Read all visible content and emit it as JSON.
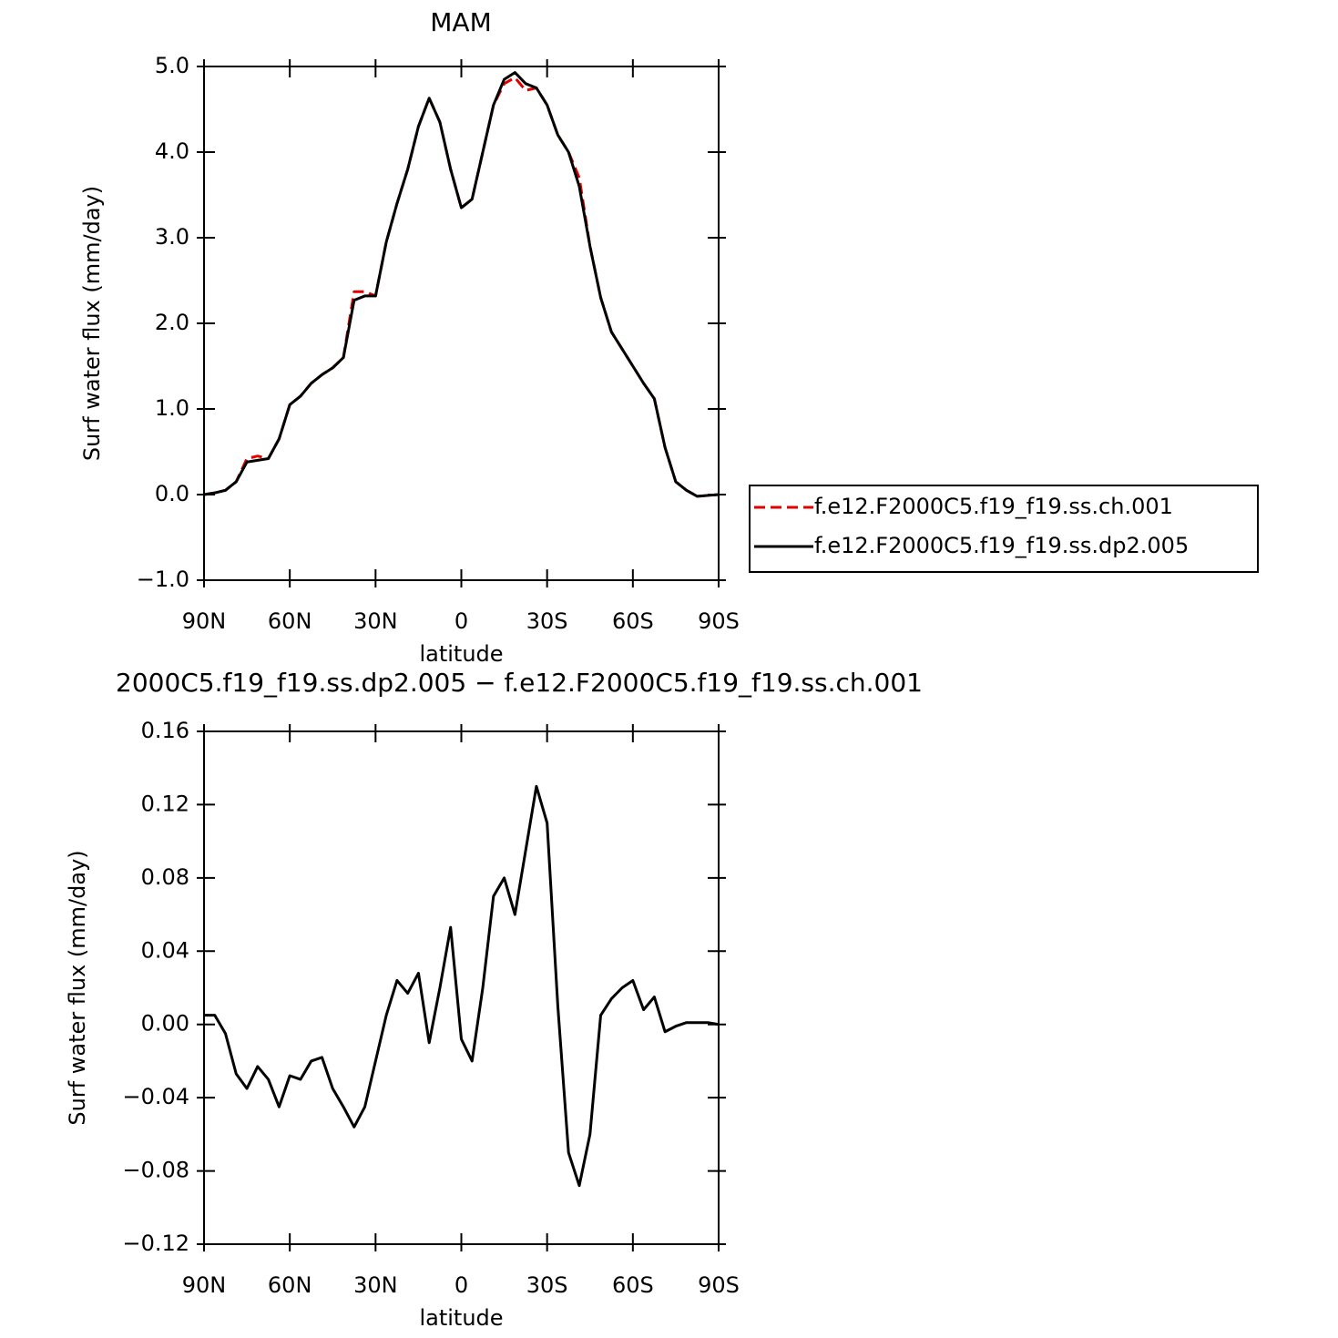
{
  "chart_data": [
    {
      "type": "line",
      "title": "MAM",
      "xlabel": "latitude",
      "ylabel": "Surf water flux (mm/day)",
      "x": [
        90,
        86.25,
        82.5,
        78.75,
        75,
        71.25,
        67.5,
        63.75,
        60,
        56.25,
        52.5,
        48.75,
        45,
        41.25,
        37.5,
        33.75,
        30,
        26.25,
        22.5,
        18.75,
        15,
        11.25,
        7.5,
        3.75,
        0,
        -3.75,
        -7.5,
        -11.25,
        -15,
        -18.75,
        -22.5,
        -26.25,
        -30,
        -33.75,
        -37.5,
        -41.25,
        -45,
        -48.75,
        -52.5,
        -56.25,
        -60,
        -63.75,
        -67.5,
        -71.25,
        -75,
        -78.75,
        -82.5,
        -86.25,
        -90
      ],
      "xlim": [
        90,
        -90
      ],
      "xticks": [
        {
          "value": 90,
          "label": "90N"
        },
        {
          "value": 60,
          "label": "60N"
        },
        {
          "value": 30,
          "label": "30N"
        },
        0,
        {
          "value": -30,
          "label": "30S"
        },
        {
          "value": -60,
          "label": "60S"
        },
        {
          "value": -90,
          "label": "90S"
        }
      ],
      "ylim": [
        -1,
        5
      ],
      "yticks": [
        {
          "value": -1,
          "label": "−1.0"
        },
        {
          "value": 0,
          "label": "0.0"
        },
        {
          "value": 1,
          "label": "1.0"
        },
        {
          "value": 2,
          "label": "2.0"
        },
        {
          "value": 3,
          "label": "3.0"
        },
        {
          "value": 4,
          "label": "4.0"
        },
        {
          "value": 5,
          "label": "5.0"
        }
      ],
      "legend": "right",
      "series": [
        {
          "name": "f.e12.F2000C5.f19_f19.ss.ch.001",
          "color": "#e00000",
          "linestyle": "dashed",
          "values": [
            0,
            0.02,
            0.05,
            0.15,
            0.42,
            0.45,
            0.42,
            0.65,
            1.05,
            1.15,
            1.3,
            1.4,
            1.48,
            1.6,
            2.37,
            2.37,
            2.32,
            2.95,
            3.4,
            3.8,
            4.3,
            4.63,
            4.35,
            3.8,
            3.35,
            3.45,
            4,
            4.55,
            4.8,
            4.87,
            4.72,
            4.75,
            4.55,
            4.2,
            4,
            3.7,
            2.9,
            2.3,
            1.9,
            1.7,
            1.5,
            1.3,
            1.12,
            0.55,
            0.15,
            0.05,
            -0.02,
            -0.01,
            0
          ]
        },
        {
          "name": "f.e12.F2000C5.f19_f19.ss.dp2.005",
          "color": "#000000",
          "linestyle": "solid",
          "values": [
            0,
            0.02,
            0.05,
            0.15,
            0.38,
            0.4,
            0.42,
            0.65,
            1.05,
            1.15,
            1.3,
            1.4,
            1.48,
            1.6,
            2.27,
            2.32,
            2.32,
            2.95,
            3.4,
            3.8,
            4.3,
            4.63,
            4.35,
            3.8,
            3.35,
            3.45,
            4,
            4.55,
            4.85,
            4.93,
            4.8,
            4.75,
            4.55,
            4.2,
            4,
            3.6,
            2.9,
            2.3,
            1.9,
            1.7,
            1.5,
            1.3,
            1.12,
            0.55,
            0.15,
            0.05,
            -0.02,
            -0.01,
            0
          ]
        }
      ]
    },
    {
      "type": "line",
      "title": "2000C5.f19_f19.ss.dp2.005 − f.e12.F2000C5.f19_f19.ss.ch.001",
      "xlabel": "latitude",
      "ylabel": "Surf water flux (mm/day)",
      "x": [
        90,
        86.25,
        82.5,
        78.75,
        75,
        71.25,
        67.5,
        63.75,
        60,
        56.25,
        52.5,
        48.75,
        45,
        41.25,
        37.5,
        33.75,
        30,
        26.25,
        22.5,
        18.75,
        15,
        11.25,
        7.5,
        3.75,
        0,
        -3.75,
        -7.5,
        -11.25,
        -15,
        -18.75,
        -22.5,
        -26.25,
        -30,
        -33.75,
        -37.5,
        -41.25,
        -45,
        -48.75,
        -52.5,
        -56.25,
        -60,
        -63.75,
        -67.5,
        -71.25,
        -75,
        -78.75,
        -82.5,
        -86.25,
        -90
      ],
      "xlim": [
        90,
        -90
      ],
      "xticks": [
        {
          "value": 90,
          "label": "90N"
        },
        {
          "value": 60,
          "label": "60N"
        },
        {
          "value": 30,
          "label": "30N"
        },
        0,
        {
          "value": -30,
          "label": "30S"
        },
        {
          "value": -60,
          "label": "60S"
        },
        {
          "value": -90,
          "label": "90S"
        }
      ],
      "ylim": [
        -0.12,
        0.16
      ],
      "yticks": [
        {
          "value": -0.12,
          "label": "−0.12"
        },
        {
          "value": -0.08,
          "label": "−0.08"
        },
        {
          "value": -0.04,
          "label": "−0.04"
        },
        {
          "value": 0,
          "label": "0.00"
        },
        0.04,
        0.08,
        0.12,
        0.16
      ],
      "series": [
        {
          "color": "#000000",
          "linestyle": "solid",
          "values": [
            0.005,
            0.005,
            -0.005,
            -0.027,
            -0.035,
            -0.023,
            -0.03,
            -0.045,
            -0.028,
            -0.03,
            -0.02,
            -0.018,
            -0.035,
            -0.045,
            -0.056,
            -0.045,
            -0.02,
            0.005,
            0.024,
            0.017,
            0.028,
            -0.01,
            0.02,
            0.053,
            -0.008,
            -0.02,
            0.02,
            0.07,
            0.08,
            0.06,
            0.095,
            0.13,
            0.11,
            0.01,
            -0.07,
            -0.088,
            -0.06,
            0.005,
            0.014,
            0.02,
            0.024,
            0.008,
            0.015,
            -0.004,
            -0.001,
            0.001,
            0.001,
            0.001,
            0
          ]
        }
      ]
    }
  ]
}
